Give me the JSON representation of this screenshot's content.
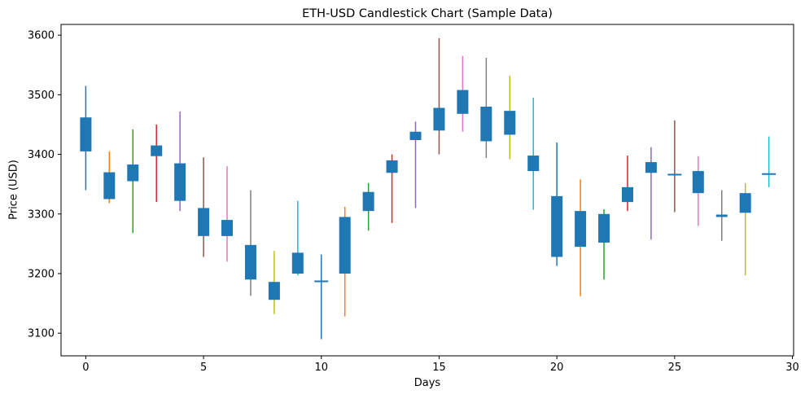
{
  "chart_data": {
    "type": "candlestick",
    "title": "ETH-USD Candlestick Chart (Sample Data)",
    "xlabel": "Days",
    "ylabel": "Price (USD)",
    "xlim": [
      -1.05,
      30.05
    ],
    "ylim": [
      3062,
      3618
    ],
    "x_ticks": [
      0,
      5,
      10,
      15,
      20,
      25,
      30
    ],
    "y_ticks": [
      3100,
      3200,
      3300,
      3400,
      3500,
      3600
    ],
    "grid": false,
    "legend": "none",
    "body_color": "#1f77b4",
    "spine_color": "#000000",
    "wick_color_cycle": [
      "#1f77b4",
      "#ff7f0e",
      "#2ca02c",
      "#d62728",
      "#9467bd",
      "#8c564b",
      "#e377c2",
      "#7f7f7f",
      "#bcbd22",
      "#17becf"
    ],
    "candles": [
      {
        "day": 0,
        "high": 3515,
        "low": 3340,
        "body_top": 3462,
        "body_bottom": 3405,
        "wick_color": "#1f77b4"
      },
      {
        "day": 1,
        "high": 3405,
        "low": 3318,
        "body_top": 3370,
        "body_bottom": 3325,
        "wick_color": "#ff7f0e"
      },
      {
        "day": 2,
        "high": 3442,
        "low": 3268,
        "body_top": 3383,
        "body_bottom": 3355,
        "wick_color": "#2ca02c"
      },
      {
        "day": 3,
        "high": 3450,
        "low": 3320,
        "body_top": 3415,
        "body_bottom": 3397,
        "wick_color": "#d62728"
      },
      {
        "day": 4,
        "high": 3472,
        "low": 3305,
        "body_top": 3385,
        "body_bottom": 3322,
        "wick_color": "#9467bd"
      },
      {
        "day": 5,
        "high": 3395,
        "low": 3228,
        "body_top": 3310,
        "body_bottom": 3263,
        "wick_color": "#8c564b"
      },
      {
        "day": 6,
        "high": 3380,
        "low": 3220,
        "body_top": 3290,
        "body_bottom": 3263,
        "wick_color": "#e377c2"
      },
      {
        "day": 7,
        "high": 3340,
        "low": 3163,
        "body_top": 3248,
        "body_bottom": 3190,
        "wick_color": "#7f7f7f"
      },
      {
        "day": 8,
        "high": 3238,
        "low": 3132,
        "body_top": 3186,
        "body_bottom": 3156,
        "wick_color": "#bcbd22"
      },
      {
        "day": 9,
        "high": 3322,
        "low": 3197,
        "body_top": 3235,
        "body_bottom": 3200,
        "wick_color": "#17becf"
      },
      {
        "day": 10,
        "high": 3232,
        "low": 3090,
        "body_top": 3188,
        "body_bottom": 3186,
        "wick_color": "#1f77b4"
      },
      {
        "day": 11,
        "high": 3312,
        "low": 3128,
        "body_top": 3295,
        "body_bottom": 3200,
        "wick_color": "#ff7f0e"
      },
      {
        "day": 12,
        "high": 3352,
        "low": 3272,
        "body_top": 3337,
        "body_bottom": 3305,
        "wick_color": "#2ca02c"
      },
      {
        "day": 13,
        "high": 3400,
        "low": 3285,
        "body_top": 3390,
        "body_bottom": 3369,
        "wick_color": "#d62728"
      },
      {
        "day": 14,
        "high": 3455,
        "low": 3310,
        "body_top": 3438,
        "body_bottom": 3424,
        "wick_color": "#9467bd"
      },
      {
        "day": 15,
        "high": 3595,
        "low": 3400,
        "body_top": 3478,
        "body_bottom": 3440,
        "wick_color": "#8c564b"
      },
      {
        "day": 16,
        "high": 3565,
        "low": 3438,
        "body_top": 3508,
        "body_bottom": 3468,
        "wick_color": "#e377c2"
      },
      {
        "day": 17,
        "high": 3562,
        "low": 3394,
        "body_top": 3480,
        "body_bottom": 3422,
        "wick_color": "#7f7f7f"
      },
      {
        "day": 18,
        "high": 3532,
        "low": 3392,
        "body_top": 3473,
        "body_bottom": 3433,
        "wick_color": "#bcbd22"
      },
      {
        "day": 19,
        "high": 3495,
        "low": 3307,
        "body_top": 3398,
        "body_bottom": 3372,
        "wick_color": "#17becf"
      },
      {
        "day": 20,
        "high": 3420,
        "low": 3213,
        "body_top": 3330,
        "body_bottom": 3228,
        "wick_color": "#1f77b4"
      },
      {
        "day": 21,
        "high": 3358,
        "low": 3162,
        "body_top": 3305,
        "body_bottom": 3245,
        "wick_color": "#ff7f0e"
      },
      {
        "day": 22,
        "high": 3308,
        "low": 3190,
        "body_top": 3300,
        "body_bottom": 3252,
        "wick_color": "#2ca02c"
      },
      {
        "day": 23,
        "high": 3398,
        "low": 3305,
        "body_top": 3345,
        "body_bottom": 3320,
        "wick_color": "#d62728"
      },
      {
        "day": 24,
        "high": 3412,
        "low": 3257,
        "body_top": 3387,
        "body_bottom": 3369,
        "wick_color": "#9467bd"
      },
      {
        "day": 25,
        "high": 3457,
        "low": 3303,
        "body_top": 3367,
        "body_bottom": 3365,
        "wick_color": "#8c564b"
      },
      {
        "day": 26,
        "high": 3397,
        "low": 3280,
        "body_top": 3372,
        "body_bottom": 3335,
        "wick_color": "#e377c2"
      },
      {
        "day": 27,
        "high": 3340,
        "low": 3255,
        "body_top": 3299,
        "body_bottom": 3295,
        "wick_color": "#7f7f7f"
      },
      {
        "day": 28,
        "high": 3352,
        "low": 3197,
        "body_top": 3335,
        "body_bottom": 3302,
        "wick_color": "#bcbd22"
      },
      {
        "day": 29,
        "high": 3430,
        "low": 3345,
        "body_top": 3368,
        "body_bottom": 3366,
        "wick_color": "#17becf"
      }
    ]
  }
}
